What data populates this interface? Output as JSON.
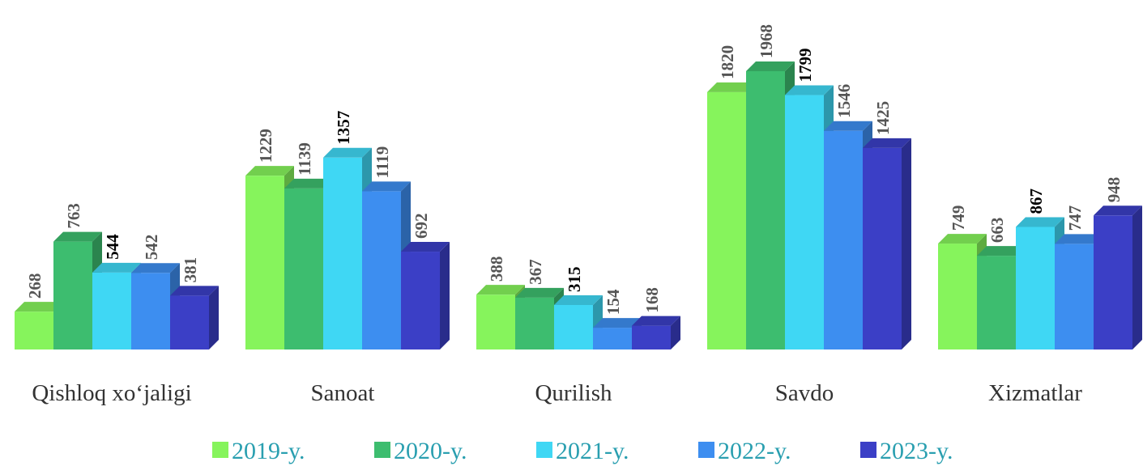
{
  "chart_data": {
    "type": "bar3d",
    "categories": [
      "Qishloq xo‘jaligi",
      "Sanoat",
      "Qurilish",
      "Savdo",
      "Xizmatlar"
    ],
    "series": [
      {
        "name": "2019-y.",
        "color": "#86f45c",
        "values": [
          268,
          1229,
          388,
          1820,
          749
        ]
      },
      {
        "name": "2020-y.",
        "color": "#3dbd6f",
        "values": [
          763,
          1139,
          367,
          1968,
          663
        ]
      },
      {
        "name": "2021-y.",
        "color": "#3fd7f4",
        "values": [
          544,
          1357,
          315,
          1799,
          867
        ]
      },
      {
        "name": "2022-y.",
        "color": "#3d8ef0",
        "values": [
          542,
          1119,
          154,
          1546,
          747
        ]
      },
      {
        "name": "2023-y.",
        "color": "#3b3fc6",
        "values": [
          381,
          692,
          168,
          1425,
          948
        ]
      }
    ]
  }
}
